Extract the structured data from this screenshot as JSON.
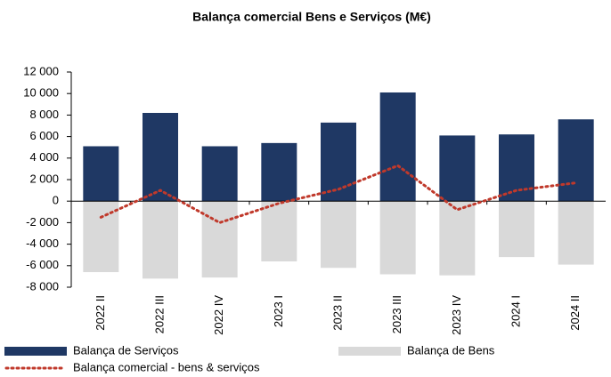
{
  "chart_data": {
    "type": "bar",
    "title": "Balança comercial Bens e Serviços (M€)",
    "categories": [
      "2022 II",
      "2022 III",
      "2022 IV",
      "2023 I",
      "2023 II",
      "2023 III",
      "2023 IV",
      "2024 I",
      "2024 II"
    ],
    "series": [
      {
        "name": "Balança de Serviços",
        "type": "bar",
        "color": "#1f3864",
        "values": [
          5100,
          8200,
          5100,
          5400,
          7300,
          10100,
          6100,
          6200,
          7600
        ]
      },
      {
        "name": "Balança de Bens",
        "type": "bar",
        "color": "#d9d9d9",
        "values": [
          -6600,
          -7200,
          -7100,
          -5600,
          -6200,
          -6800,
          -6900,
          -5200,
          -5900
        ]
      },
      {
        "name": "Balança comercial - bens & serviços",
        "type": "line",
        "line_style": "dotted",
        "color": "#c0392b",
        "values": [
          -1500,
          1000,
          -2000,
          -200,
          1100,
          3300,
          -800,
          1000,
          1700
        ]
      }
    ],
    "stacked": true,
    "ylim": [
      -8000,
      12000
    ],
    "yticks": [
      {
        "value": -8000,
        "label": "-8 000"
      },
      {
        "value": -6000,
        "label": "-6 000"
      },
      {
        "value": -4000,
        "label": "-4 000"
      },
      {
        "value": -2000,
        "label": "-2 000"
      },
      0,
      {
        "value": 2000,
        "label": "2 000"
      },
      {
        "value": 4000,
        "label": "4 000"
      },
      {
        "value": 6000,
        "label": "6 000"
      },
      {
        "value": 8000,
        "label": "8 000"
      },
      {
        "value": 10000,
        "label": "10 000"
      },
      {
        "value": 12000,
        "label": "12 000"
      }
    ],
    "grid": false
  }
}
